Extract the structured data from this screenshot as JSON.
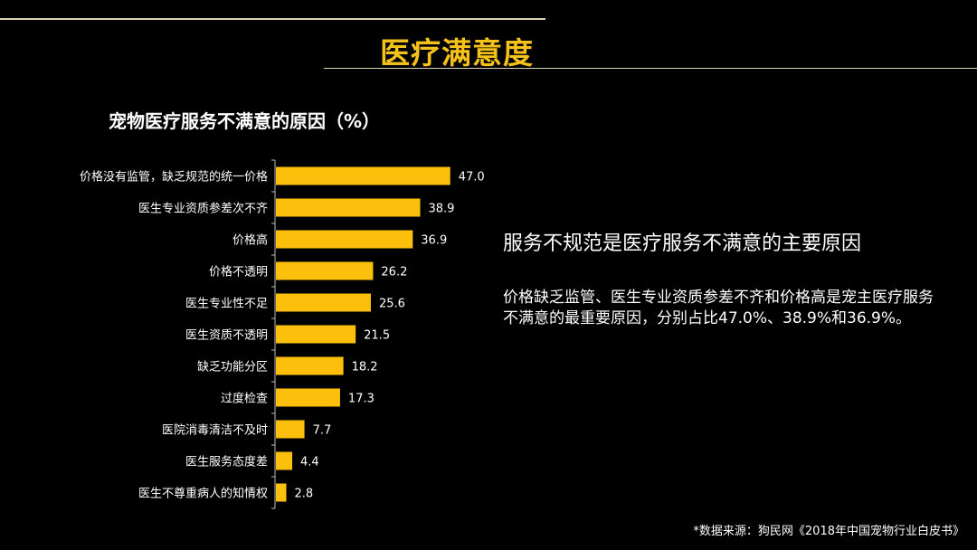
{
  "page": {
    "title": "医疗满意度",
    "accent": "#f5c21b"
  },
  "chart_data": {
    "type": "bar",
    "orientation": "horizontal",
    "title": "宠物医疗服务不满意的原因（%）",
    "categories": [
      "价格没有监管，缺乏规范的统一价格",
      "医生专业资质参差次不齐",
      "价格高",
      "价格不透明",
      "医生专业性不足",
      "医生资质不透明",
      "缺乏功能分区",
      "过度检查",
      "医院消毒清洁不及时",
      "医生服务态度差",
      "医生不尊重病人的知情权"
    ],
    "values": [
      47.0,
      38.9,
      36.9,
      26.2,
      25.6,
      21.5,
      18.2,
      17.3,
      7.7,
      4.4,
      2.8
    ],
    "bar_color": "#fcbf0b",
    "grid": false,
    "data_labels": true
  },
  "summary": {
    "headline": "服务不规范是医疗服务不满意的主要原因",
    "body": "价格缺乏监管、医生专业资质参差不齐和价格高是宠主医疗服务不满意的最重要原因，分别占比47.0%、38.9%和36.9%。"
  },
  "source": "*数据来源：狗民网《2018年中国宠物行业白皮书》"
}
